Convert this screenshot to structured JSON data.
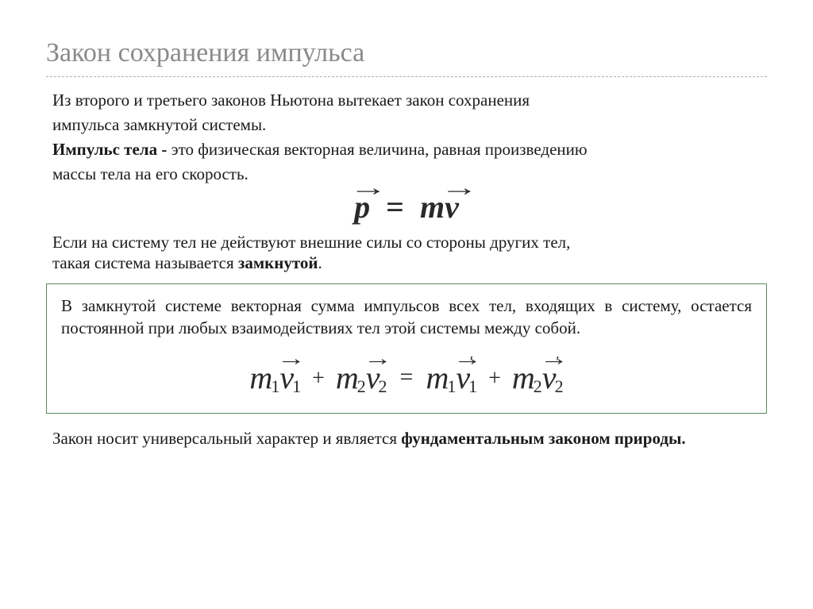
{
  "title": "Закон сохранения импульса",
  "intro": {
    "line1": "Из второго и третьего законов Ньютона вытекает закон сохранения",
    "line2": "импульса замкнутой системы.",
    "def_bold": "Импульс тела - ",
    "def_rest": "это физическая векторная величина, равная произведению",
    "def_line2": "массы тела на его скорость."
  },
  "formula1": {
    "p": "p",
    "eq": "=",
    "m": "m",
    "v": "v"
  },
  "closed": {
    "line1": "Если на систему тел не действуют внешние силы со стороны других тел,",
    "line2_a": "такая система называется ",
    "line2_b": "замкнутой"
  },
  "box": {
    "text": "В замкнутой системе векторная сумма импульсов всех тел, входящих в систему, остается постоянной при любых взаимодействиях тел этой системы между собой."
  },
  "formula2": {
    "m": "m",
    "v": "v",
    "s1": "1",
    "s2": "2",
    "plus": "+",
    "eq": "="
  },
  "footer": {
    "a": "Закон носит универсальный характер и является ",
    "b": "фундаментальным законом природы."
  },
  "colors": {
    "title": "#8a8a8a",
    "text": "#1a1a1a",
    "box_border": "#5a8a5a",
    "bg": "#ffffff"
  },
  "typography": {
    "title_fontsize": 34,
    "body_fontsize": 21,
    "formula_fontsize": 40
  }
}
